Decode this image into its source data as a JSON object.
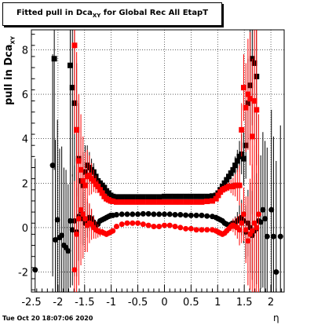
{
  "title_box": {
    "text": "Fitted pull in Dca",
    "sub": "XY",
    "suffix": " for Global Rec All EtapT"
  },
  "ylabel": {
    "text": "pull in Dca",
    "sub": "XY"
  },
  "xlabel": "η",
  "timestamp": "Tue Oct 20 18:07:06 2020",
  "chart_data": {
    "type": "scatter",
    "xlim": [
      -2.5,
      2.25
    ],
    "ylim": [
      -2.9,
      8.9
    ],
    "x_ticks": [
      "-2.5",
      "-2",
      "-1.5",
      "-1",
      "-0.5",
      "0",
      "0.5",
      "1",
      "1.5",
      "2"
    ],
    "x_tick_values": [
      -2.5,
      -2,
      -1.5,
      -1,
      -0.5,
      0,
      0.5,
      1,
      1.5,
      2
    ],
    "y_ticks": [
      "-2",
      "0",
      "2",
      "4",
      "6",
      "8"
    ],
    "y_tick_values": [
      -2,
      0,
      2,
      4,
      6,
      8
    ],
    "grid": true,
    "series": [
      {
        "color": "#000000",
        "marker": "square",
        "x": [
          -2.07,
          -1.77,
          -1.73,
          -1.69,
          -1.65,
          -1.61,
          -1.57,
          -1.53,
          -1.49,
          -1.45,
          -1.41,
          -1.37,
          -1.33,
          -1.29,
          -1.25,
          -1.21,
          -1.17,
          -1.13,
          -1.09,
          -1.05,
          -1.01,
          -0.97,
          -0.9,
          -0.8,
          -0.7,
          -0.6,
          -0.5,
          -0.4,
          -0.3,
          -0.2,
          -0.1,
          0,
          0.1,
          0.2,
          0.3,
          0.4,
          0.5,
          0.6,
          0.7,
          0.8,
          0.9,
          0.97,
          1.01,
          1.05,
          1.09,
          1.13,
          1.17,
          1.21,
          1.25,
          1.29,
          1.33,
          1.37,
          1.41,
          1.45,
          1.49,
          1.53,
          1.57,
          1.61,
          1.65,
          1.69,
          1.73
        ],
        "y": [
          7.6,
          7.3,
          6.3,
          5.6,
          4.4,
          3.1,
          2.1,
          1.9,
          2.5,
          2.8,
          2.7,
          2.6,
          2.5,
          2.3,
          2.1,
          2.0,
          1.9,
          1.8,
          1.65,
          1.55,
          1.45,
          1.4,
          1.38,
          1.38,
          1.38,
          1.38,
          1.38,
          1.38,
          1.38,
          1.38,
          1.38,
          1.4,
          1.4,
          1.4,
          1.4,
          1.4,
          1.4,
          1.4,
          1.4,
          1.4,
          1.42,
          1.45,
          1.55,
          1.7,
          1.85,
          2.0,
          2.15,
          2.3,
          2.45,
          2.6,
          2.8,
          3.0,
          3.2,
          3.3,
          3.1,
          3.7,
          5.6,
          6.4,
          7.6,
          7.4,
          6.8
        ],
        "err": [
          5,
          4.5,
          4,
          3.5,
          3,
          2.5,
          2,
          1.5,
          1.2,
          0.9,
          0.7,
          0.5,
          0.4,
          0.3,
          0.2,
          0.15,
          0.1,
          0.08,
          0.05,
          0.05,
          0.05,
          0.05,
          0.05,
          0.05,
          0.05,
          0.05,
          0.05,
          0.05,
          0.05,
          0.05,
          0.05,
          0.05,
          0.05,
          0.05,
          0.05,
          0.05,
          0.05,
          0.05,
          0.05,
          0.05,
          0.05,
          0.05,
          0.05,
          0.05,
          0.05,
          0.08,
          0.1,
          0.15,
          0.2,
          0.3,
          0.4,
          0.5,
          0.7,
          0.9,
          1.2,
          1.5,
          2,
          2.5,
          3,
          3.5,
          4
        ]
      },
      {
        "color": "#ff0000",
        "marker": "square",
        "x": [
          -1.69,
          -1.65,
          -1.61,
          -1.57,
          -1.53,
          -1.49,
          -1.45,
          -1.41,
          -1.37,
          -1.33,
          -1.29,
          -1.25,
          -1.21,
          -1.17,
          -1.13,
          -1.09,
          -1.05,
          -1.01,
          -0.97,
          -0.9,
          -0.8,
          -0.7,
          -0.6,
          -0.5,
          -0.4,
          -0.3,
          -0.2,
          -0.1,
          0,
          0.1,
          0.2,
          0.3,
          0.4,
          0.5,
          0.6,
          0.7,
          0.8,
          0.9,
          0.97,
          1.01,
          1.05,
          1.09,
          1.13,
          1.17,
          1.21,
          1.25,
          1.29,
          1.33,
          1.37,
          1.41,
          1.45,
          1.49,
          1.53,
          1.57,
          1.61,
          1.65,
          1.69,
          1.73
        ],
        "y": [
          8.2,
          4.4,
          3.0,
          2.6,
          2.1,
          1.9,
          2.3,
          2.35,
          2.2,
          2.1,
          1.95,
          1.85,
          1.7,
          1.55,
          1.4,
          1.3,
          1.25,
          1.2,
          1.18,
          1.15,
          1.15,
          1.15,
          1.15,
          1.15,
          1.15,
          1.15,
          1.15,
          1.15,
          1.15,
          1.15,
          1.15,
          1.15,
          1.15,
          1.15,
          1.15,
          1.15,
          1.18,
          1.2,
          1.3,
          1.45,
          1.6,
          1.7,
          1.75,
          1.8,
          1.85,
          1.85,
          1.85,
          1.9,
          1.9,
          1.9,
          4.4,
          6.3,
          5.4,
          6.0,
          5.8,
          4.1,
          5.7,
          5.3
        ],
        "err": [
          4,
          3.5,
          3,
          2.5,
          2,
          1.5,
          1.2,
          0.9,
          0.7,
          0.5,
          0.4,
          0.3,
          0.2,
          0.15,
          0.1,
          0.08,
          0.05,
          0.05,
          0.05,
          0.05,
          0.05,
          0.05,
          0.05,
          0.05,
          0.05,
          0.05,
          0.05,
          0.05,
          0.05,
          0.05,
          0.05,
          0.05,
          0.05,
          0.05,
          0.05,
          0.05,
          0.05,
          0.05,
          0.05,
          0.05,
          0.05,
          0.08,
          0.1,
          0.15,
          0.2,
          0.3,
          0.4,
          0.5,
          0.7,
          0.9,
          1.2,
          1.5,
          2,
          2.5,
          3,
          3.5,
          4,
          4.5
        ]
      },
      {
        "color": "#000000",
        "marker": "circle",
        "x": [
          -2.43,
          -2.1,
          -2.05,
          -2.01,
          -1.97,
          -1.93,
          -1.89,
          -1.85,
          -1.81,
          -1.77,
          -1.73,
          -1.69,
          -1.65,
          -1.61,
          -1.57,
          -1.53,
          -1.49,
          -1.45,
          -1.41,
          -1.37,
          -1.33,
          -1.29,
          -1.25,
          -1.21,
          -1.17,
          -1.13,
          -1.09,
          -1.05,
          -1.01,
          -0.97,
          -0.9,
          -0.8,
          -0.7,
          -0.6,
          -0.5,
          -0.4,
          -0.3,
          -0.2,
          -0.1,
          0,
          0.1,
          0.2,
          0.3,
          0.4,
          0.5,
          0.6,
          0.7,
          0.8,
          0.9,
          0.97,
          1.01,
          1.05,
          1.09,
          1.13,
          1.17,
          1.21,
          1.25,
          1.29,
          1.33,
          1.37,
          1.41,
          1.45,
          1.49,
          1.53,
          1.57,
          1.61,
          1.65,
          1.69,
          1.73,
          1.77,
          1.81,
          1.85,
          1.89,
          1.93,
          2.01,
          2.05,
          2.1,
          2.18
        ],
        "y": [
          -1.9,
          2.8,
          -0.55,
          0.35,
          -0.45,
          -0.35,
          -0.8,
          -0.9,
          -1.05,
          0.3,
          -0.1,
          0.3,
          -0.2,
          0.5,
          0.75,
          0.4,
          0.2,
          0.35,
          0.45,
          0.4,
          0.25,
          0.1,
          0.15,
          0.3,
          0.35,
          0.4,
          0.45,
          0.5,
          0.55,
          0.55,
          0.58,
          0.6,
          0.6,
          0.6,
          0.6,
          0.62,
          0.62,
          0.6,
          0.6,
          0.6,
          0.6,
          0.58,
          0.58,
          0.56,
          0.55,
          0.55,
          0.55,
          0.52,
          0.5,
          0.45,
          0.4,
          0.35,
          0.3,
          0.2,
          0.15,
          0.1,
          0.15,
          0.2,
          0.2,
          0.3,
          0.4,
          0.45,
          0.3,
          -0.2,
          0.2,
          0.0,
          -0.35,
          -0.15,
          -0.05,
          0.3,
          0.25,
          0.8,
          0.4,
          -0.4,
          0.8,
          -0.4,
          -2.0,
          -0.4
        ],
        "err": [
          5,
          5,
          4.5,
          4.5,
          4,
          4,
          3.5,
          3.5,
          3,
          3,
          2.5,
          2.5,
          2,
          2,
          1.5,
          1.2,
          1,
          0.8,
          0.6,
          0.4,
          0.3,
          0.2,
          0.15,
          0.1,
          0.08,
          0.05,
          0.05,
          0.05,
          0.05,
          0.05,
          0.05,
          0.05,
          0.05,
          0.05,
          0.05,
          0.05,
          0.05,
          0.05,
          0.05,
          0.05,
          0.05,
          0.05,
          0.05,
          0.05,
          0.05,
          0.05,
          0.05,
          0.05,
          0.05,
          0.05,
          0.05,
          0.05,
          0.05,
          0.05,
          0.08,
          0.1,
          0.15,
          0.2,
          0.3,
          0.4,
          0.6,
          0.8,
          1,
          1.2,
          1.5,
          2,
          2,
          2.5,
          2.5,
          3,
          3,
          3.5,
          3.5,
          4,
          4.5,
          4.5,
          5,
          5
        ]
      },
      {
        "color": "#ff0000",
        "marker": "circle",
        "x": [
          -1.69,
          -1.65,
          -1.61,
          -1.57,
          -1.53,
          -1.49,
          -1.45,
          -1.41,
          -1.37,
          -1.33,
          -1.29,
          -1.25,
          -1.21,
          -1.17,
          -1.13,
          -1.09,
          -1.05,
          -1.01,
          -0.97,
          -0.9,
          -0.8,
          -0.7,
          -0.6,
          -0.5,
          -0.4,
          -0.3,
          -0.2,
          -0.1,
          0,
          0.1,
          0.2,
          0.3,
          0.4,
          0.5,
          0.6,
          0.7,
          0.8,
          0.9,
          0.97,
          1.01,
          1.05,
          1.09,
          1.13,
          1.17,
          1.21,
          1.25,
          1.29,
          1.33,
          1.37,
          1.41,
          1.45,
          1.49,
          1.53,
          1.57,
          1.61,
          1.65,
          1.69,
          1.73,
          1.77
        ],
        "y": [
          -1.9,
          -0.3,
          0.4,
          0.8,
          0.6,
          0.4,
          0.1,
          0.2,
          0.15,
          0.0,
          -0.1,
          -0.15,
          -0.2,
          -0.2,
          -0.25,
          -0.3,
          -0.25,
          -0.2,
          -0.15,
          0.05,
          0.15,
          0.2,
          0.2,
          0.2,
          0.15,
          0.1,
          0.05,
          0.05,
          0.1,
          0.1,
          0.05,
          0.0,
          -0.05,
          -0.05,
          -0.1,
          -0.1,
          -0.1,
          -0.1,
          -0.15,
          -0.2,
          -0.25,
          -0.3,
          -0.25,
          -0.15,
          -0.05,
          0.05,
          0.1,
          0.05,
          0.0,
          -0.1,
          0.2,
          0.6,
          -0.1,
          -0.6,
          -0.3,
          -0.15,
          0.2,
          0.0,
          0.6
        ],
        "err": [
          4,
          3.5,
          3,
          2.5,
          2,
          1.5,
          1.2,
          0.9,
          0.7,
          0.5,
          0.4,
          0.3,
          0.2,
          0.15,
          0.1,
          0.08,
          0.05,
          0.05,
          0.05,
          0.05,
          0.05,
          0.05,
          0.05,
          0.05,
          0.05,
          0.05,
          0.05,
          0.05,
          0.05,
          0.05,
          0.05,
          0.05,
          0.05,
          0.05,
          0.05,
          0.05,
          0.05,
          0.05,
          0.05,
          0.05,
          0.05,
          0.05,
          0.08,
          0.1,
          0.15,
          0.2,
          0.3,
          0.4,
          0.5,
          0.7,
          0.9,
          1.2,
          1.5,
          2,
          2.5,
          3,
          3.5,
          4,
          4.5
        ]
      }
    ]
  }
}
